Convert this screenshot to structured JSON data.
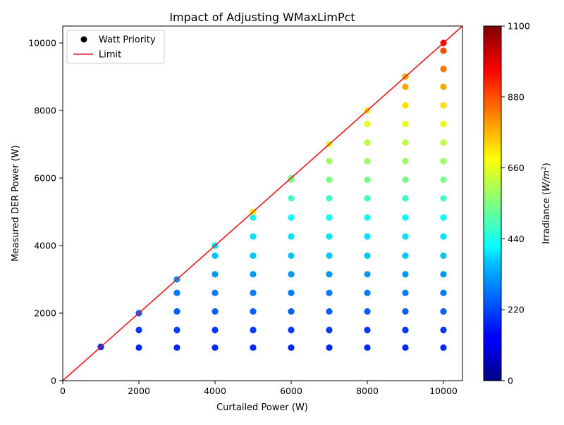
{
  "chart_data": {
    "type": "scatter",
    "title": "Impact of Adjusting WMaxLimPct",
    "xlabel": "Curtailed Power (W)",
    "ylabel": "Measured DER Power (W)",
    "xlim": [
      0,
      10500
    ],
    "ylim": [
      0,
      10500
    ],
    "xticks": [
      0,
      2000,
      4000,
      6000,
      8000,
      10000
    ],
    "yticks": [
      0,
      2000,
      4000,
      6000,
      8000,
      10000
    ],
    "grid": false,
    "legend": {
      "placement": "top-left",
      "entries": [
        {
          "label": "Watt Priority",
          "marker": "circle",
          "color": "#000000"
        },
        {
          "label": "Limit",
          "marker": "line",
          "color": "#e41a1c"
        }
      ]
    },
    "limit_line": {
      "name": "Limit",
      "x": [
        0,
        10500
      ],
      "y": [
        0,
        10500
      ],
      "color": "#e41a1c"
    },
    "colorbar": {
      "label_prefix": "Irradiance (",
      "label_unit": "W/m",
      "label_exp": "2",
      "label_suffix": ")",
      "range": [
        0,
        1100
      ],
      "ticks": [
        0,
        220,
        440,
        660,
        880,
        1100
      ],
      "colormap": "jet"
    },
    "series": [
      {
        "name": "Watt Priority",
        "curtailed_power_w": [
          1000,
          2000,
          3000,
          4000,
          5000,
          6000,
          7000,
          8000,
          9000,
          10000
        ],
        "measured_power_levels_w": [
          980,
          1500,
          2050,
          2600,
          3150,
          3700,
          4270,
          4830,
          5400,
          5950,
          6500,
          7050,
          7600,
          8150,
          8700,
          9230,
          9770
        ],
        "irradiance_levels_w_m2": [
          180,
          200,
          240,
          270,
          300,
          350,
          380,
          420,
          480,
          540,
          580,
          620,
          660,
          720,
          780,
          840,
          880
        ],
        "rule": "For each curtailed power x, points are drawn at every measured level below x, plus a point at min(x, 10000) on the limit line."
      }
    ]
  }
}
